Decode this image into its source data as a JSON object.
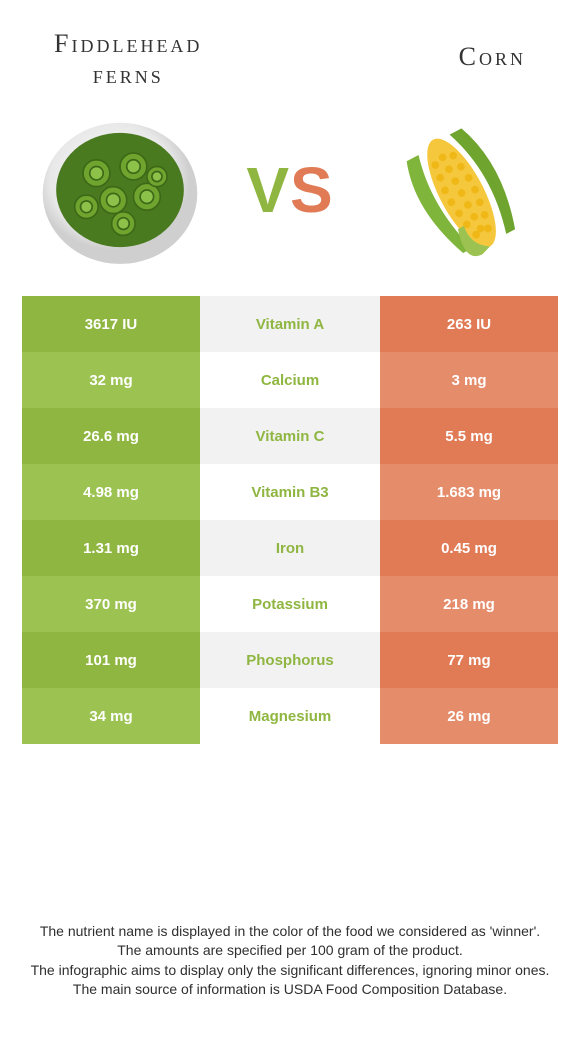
{
  "titles": {
    "left_line1": "Fiddlehead",
    "left_line2": "ferns",
    "right": "Corn",
    "vs_v": "V",
    "vs_s": "S"
  },
  "colors": {
    "left_dark": "#8fb641",
    "left_light": "#9cc351",
    "mid_dark": "#f2f2f2",
    "mid_light": "#ffffff",
    "right_dark": "#e07b56",
    "right_light": "#e58c6b",
    "winner_left": "#8fb641",
    "winner_right": "#e07b56",
    "text_white": "#ffffff"
  },
  "table": {
    "rows": [
      {
        "left": "3617 IU",
        "mid": "Vitamin A",
        "right": "263 IU",
        "winner": "left"
      },
      {
        "left": "32 mg",
        "mid": "Calcium",
        "right": "3 mg",
        "winner": "left"
      },
      {
        "left": "26.6 mg",
        "mid": "Vitamin C",
        "right": "5.5 mg",
        "winner": "left"
      },
      {
        "left": "4.98 mg",
        "mid": "Vitamin B3",
        "right": "1.683 mg",
        "winner": "left"
      },
      {
        "left": "1.31 mg",
        "mid": "Iron",
        "right": "0.45 mg",
        "winner": "left"
      },
      {
        "left": "370 mg",
        "mid": "Potassium",
        "right": "218 mg",
        "winner": "left"
      },
      {
        "left": "101 mg",
        "mid": "Phosphorus",
        "right": "77 mg",
        "winner": "left"
      },
      {
        "left": "34 mg",
        "mid": "Magnesium",
        "right": "26 mg",
        "winner": "left"
      }
    ]
  },
  "footer": {
    "l1": "The nutrient name is displayed in the color of the food we considered as 'winner'.",
    "l2": "The amounts are specified per 100 gram of the product.",
    "l3": "The infographic aims to display only the significant differences, ignoring minor ones.",
    "l4": "The main source of information is USDA Food Composition Database."
  }
}
